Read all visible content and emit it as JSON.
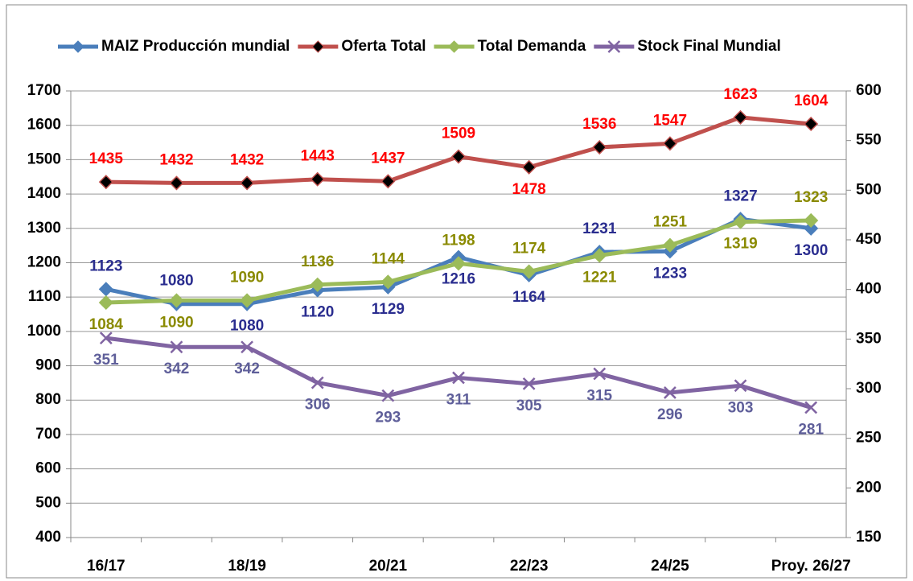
{
  "chart_data": {
    "type": "line",
    "categories": [
      "16/17",
      null,
      "18/19",
      null,
      "20/21",
      null,
      "22/23",
      null,
      "24/25",
      null,
      "Proy. 26/27"
    ],
    "series": [
      {
        "name": "MAIZ Producción mundial",
        "color": "#4a7ebb",
        "marker": "diamond",
        "marker_color": "#4a7ebb",
        "label_color": "#2a2d8f",
        "values": [
          1123,
          1080,
          1080,
          1120,
          1129,
          1216,
          1164,
          1231,
          1233,
          1327,
          1300
        ]
      },
      {
        "name": "Oferta Total",
        "color": "#c0504d",
        "marker": "diamond",
        "marker_color": "#000000",
        "label_color": "#ff0000",
        "values": [
          1435,
          1432,
          1432,
          1443,
          1437,
          1509,
          1478,
          1536,
          1547,
          1623,
          1604
        ]
      },
      {
        "name": "Total Demanda",
        "color": "#9bbb59",
        "marker": "diamond",
        "marker_color": "#9bbb59",
        "label_color": "#8a8a00",
        "values": [
          1084,
          1090,
          1090,
          1136,
          1144,
          1198,
          1174,
          1221,
          1251,
          1319,
          1323
        ]
      },
      {
        "name": "Stock Final Mundial",
        "color": "#8064a2",
        "marker": "x",
        "marker_color": "#8064a2",
        "label_color": "#5f5f9a",
        "axis": "y2",
        "values": [
          351,
          342,
          342,
          306,
          293,
          311,
          305,
          315,
          296,
          303,
          281
        ]
      }
    ],
    "ylim": [
      400,
      1700
    ],
    "yticks": [
      400,
      500,
      600,
      700,
      800,
      900,
      1000,
      1100,
      1200,
      1300,
      1400,
      1500,
      1600,
      1700
    ],
    "y2lim": [
      150,
      600
    ],
    "y2ticks": [
      150,
      200,
      250,
      300,
      350,
      400,
      450,
      500,
      550,
      600
    ],
    "grid": true,
    "legend": "top"
  }
}
